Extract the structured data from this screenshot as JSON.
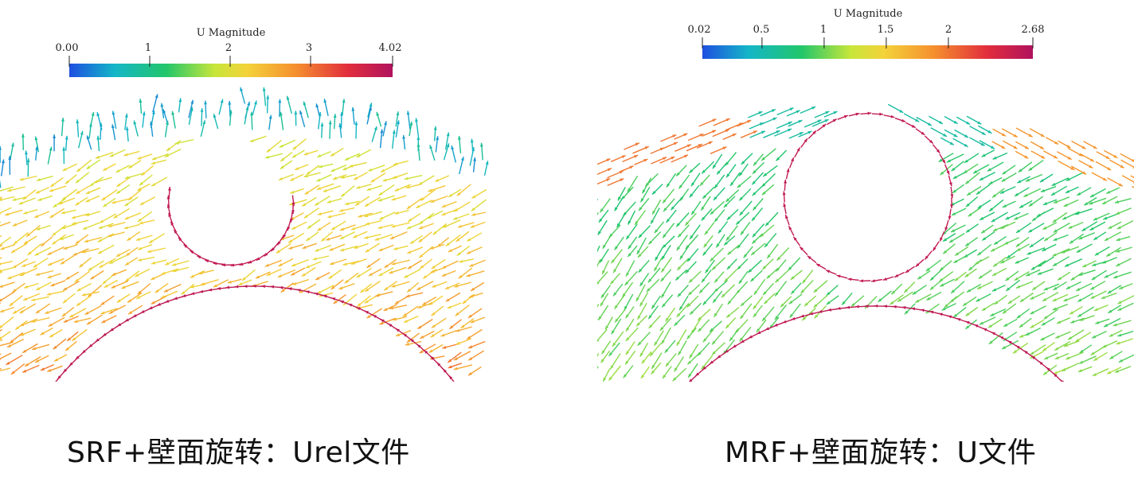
{
  "panels": [
    {
      "id": "left",
      "colorbar": {
        "title": "U Magnitude",
        "min": 0.0,
        "max": 4.02,
        "ticks": [
          {
            "value": 0.0,
            "label": "0.00"
          },
          {
            "value": 1,
            "label": "1"
          },
          {
            "value": 2,
            "label": "2"
          },
          {
            "value": 3,
            "label": "3"
          },
          {
            "value": 4.02,
            "label": "4.02"
          }
        ]
      },
      "caption": "SRF+壁面旋转：Urel文件"
    },
    {
      "id": "right",
      "colorbar": {
        "title": "U Magnitude",
        "min": 0.02,
        "max": 2.68,
        "ticks": [
          {
            "value": 0.02,
            "label": "0.02"
          },
          {
            "value": 0.5,
            "label": "0.5"
          },
          {
            "value": 1,
            "label": "1"
          },
          {
            "value": 1.5,
            "label": "1.5"
          },
          {
            "value": 2,
            "label": "2"
          },
          {
            "value": 2.68,
            "label": "2.68"
          }
        ]
      },
      "caption": "MRF+壁面旋转：U文件"
    }
  ],
  "colormap": [
    "#1e4fe0",
    "#14b6c8",
    "#22c66a",
    "#c8e63a",
    "#f4d23a",
    "#f5902e",
    "#e22e3c",
    "#b0125e"
  ]
}
